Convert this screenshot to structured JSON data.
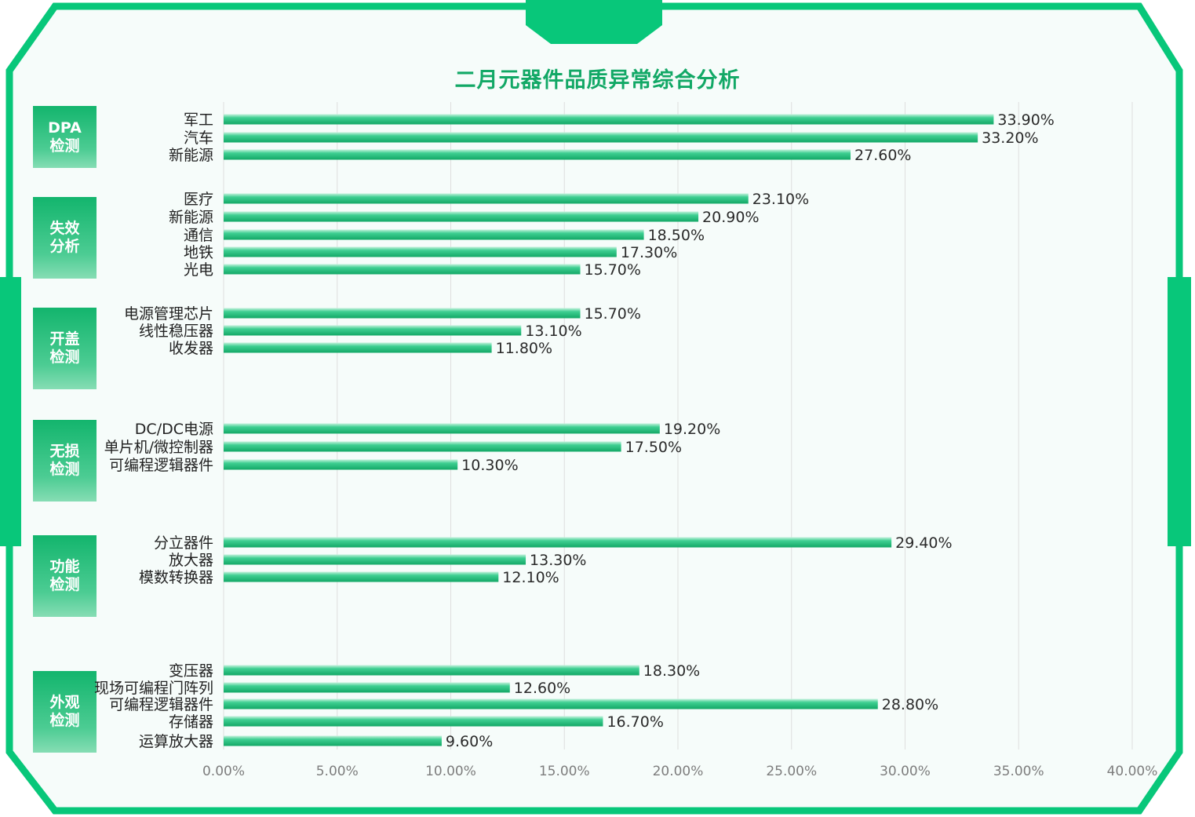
{
  "chart_data": {
    "type": "bar",
    "orientation": "horizontal",
    "title": "二月元器件品质异常综合分析",
    "xlim": [
      0,
      40
    ],
    "x_ticks": [
      "0.00%",
      "5.00%",
      "10.00%",
      "15.00%",
      "20.00%",
      "25.00%",
      "30.00%",
      "35.00%",
      "40.00%"
    ],
    "grid": "vertical",
    "colors": {
      "bar": "#1fbd7c",
      "bar_light": "#c6f2dd",
      "accent": "#08c77a",
      "title": "#12a866"
    },
    "groups": [
      {
        "name_lines": [
          "DPA",
          "检测"
        ],
        "items": [
          {
            "label": "军工",
            "value": 33.9,
            "value_label": "33.90%"
          },
          {
            "label": "汽车",
            "value": 33.2,
            "value_label": "33.20%"
          },
          {
            "label": "新能源",
            "value": 27.6,
            "value_label": "27.60%"
          }
        ]
      },
      {
        "name_lines": [
          "失效",
          "分析"
        ],
        "items": [
          {
            "label": "医疗",
            "value": 23.1,
            "value_label": "23.10%"
          },
          {
            "label": "新能源",
            "value": 20.9,
            "value_label": "20.90%"
          },
          {
            "label": "通信",
            "value": 18.5,
            "value_label": "18.50%"
          },
          {
            "label": "地铁",
            "value": 17.3,
            "value_label": "17.30%"
          },
          {
            "label": "光电",
            "value": 15.7,
            "value_label": "15.70%"
          }
        ]
      },
      {
        "name_lines": [
          "开盖",
          "检测"
        ],
        "items": [
          {
            "label": "电源管理芯片",
            "value": 15.7,
            "value_label": "15.70%"
          },
          {
            "label": "线性稳压器",
            "value": 13.1,
            "value_label": "13.10%"
          },
          {
            "label": "收发器",
            "value": 11.8,
            "value_label": "11.80%"
          }
        ]
      },
      {
        "name_lines": [
          "无损",
          "检测"
        ],
        "items": [
          {
            "label": "DC/DC电源",
            "value": 19.2,
            "value_label": "19.20%"
          },
          {
            "label": "单片机/微控制器",
            "value": 17.5,
            "value_label": "17.50%"
          },
          {
            "label": "可编程逻辑器件",
            "value": 10.3,
            "value_label": "10.30%"
          }
        ]
      },
      {
        "name_lines": [
          "功能",
          "检测"
        ],
        "items": [
          {
            "label": "分立器件",
            "value": 29.4,
            "value_label": "29.40%"
          },
          {
            "label": "放大器",
            "value": 13.3,
            "value_label": "13.30%"
          },
          {
            "label": "模数转换器",
            "value": 12.1,
            "value_label": "12.10%"
          }
        ]
      },
      {
        "name_lines": [
          "外观",
          "检测"
        ],
        "items": [
          {
            "label": "变压器",
            "value": 18.3,
            "value_label": "18.30%"
          },
          {
            "label": "现场可编程门阵列",
            "value": 12.6,
            "value_label": "12.60%"
          },
          {
            "label": "可编程逻辑器件",
            "value": 28.8,
            "value_label": "28.80%"
          },
          {
            "label": "存储器",
            "value": 16.7,
            "value_label": "16.70%"
          },
          {
            "label": "运算放大器",
            "value": 9.6,
            "value_label": "9.60%"
          }
        ]
      }
    ]
  }
}
